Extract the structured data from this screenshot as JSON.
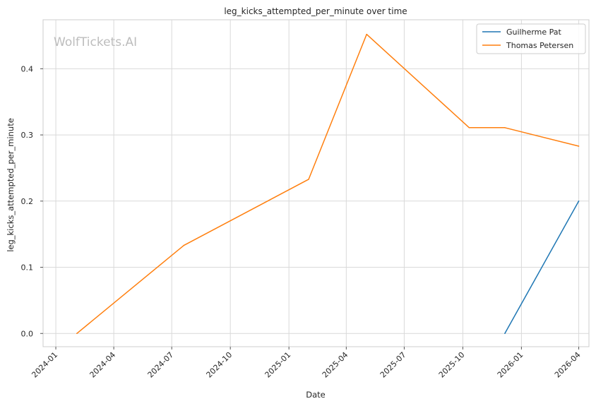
{
  "chart_data": {
    "type": "line",
    "title": "leg_kicks_attempted_per_minute over time",
    "xlabel": "Date",
    "ylabel": "leg_kicks_attempted_per_minute",
    "watermark": "WolfTickets.AI",
    "x_ticks": [
      "2024-01",
      "2024-04",
      "2024-07",
      "2024-10",
      "2025-01",
      "2025-04",
      "2025-07",
      "2025-10",
      "2026-01",
      "2026-04"
    ],
    "y_ticks": [
      "0.0",
      "0.1",
      "0.2",
      "0.3",
      "0.4"
    ],
    "xlim": [
      "2023-12-12",
      "2026-04-17"
    ],
    "ylim": [
      -0.02,
      0.474
    ],
    "grid": true,
    "legend_position": "top-right",
    "series": [
      {
        "name": "Guilherme Pat",
        "color": "#1f77b4",
        "points": [
          {
            "x": "2025-12-06",
            "y": 0.0
          },
          {
            "x": "2026-04-01",
            "y": 0.2
          }
        ]
      },
      {
        "name": "Thomas Petersen",
        "color": "#ff7f0e",
        "points": [
          {
            "x": "2024-02-03",
            "y": 0.0
          },
          {
            "x": "2024-07-20",
            "y": 0.133
          },
          {
            "x": "2025-02-01",
            "y": 0.233
          },
          {
            "x": "2025-05-03",
            "y": 0.452
          },
          {
            "x": "2025-10-11",
            "y": 0.311
          },
          {
            "x": "2025-12-06",
            "y": 0.311
          },
          {
            "x": "2026-04-01",
            "y": 0.283
          }
        ]
      }
    ]
  }
}
